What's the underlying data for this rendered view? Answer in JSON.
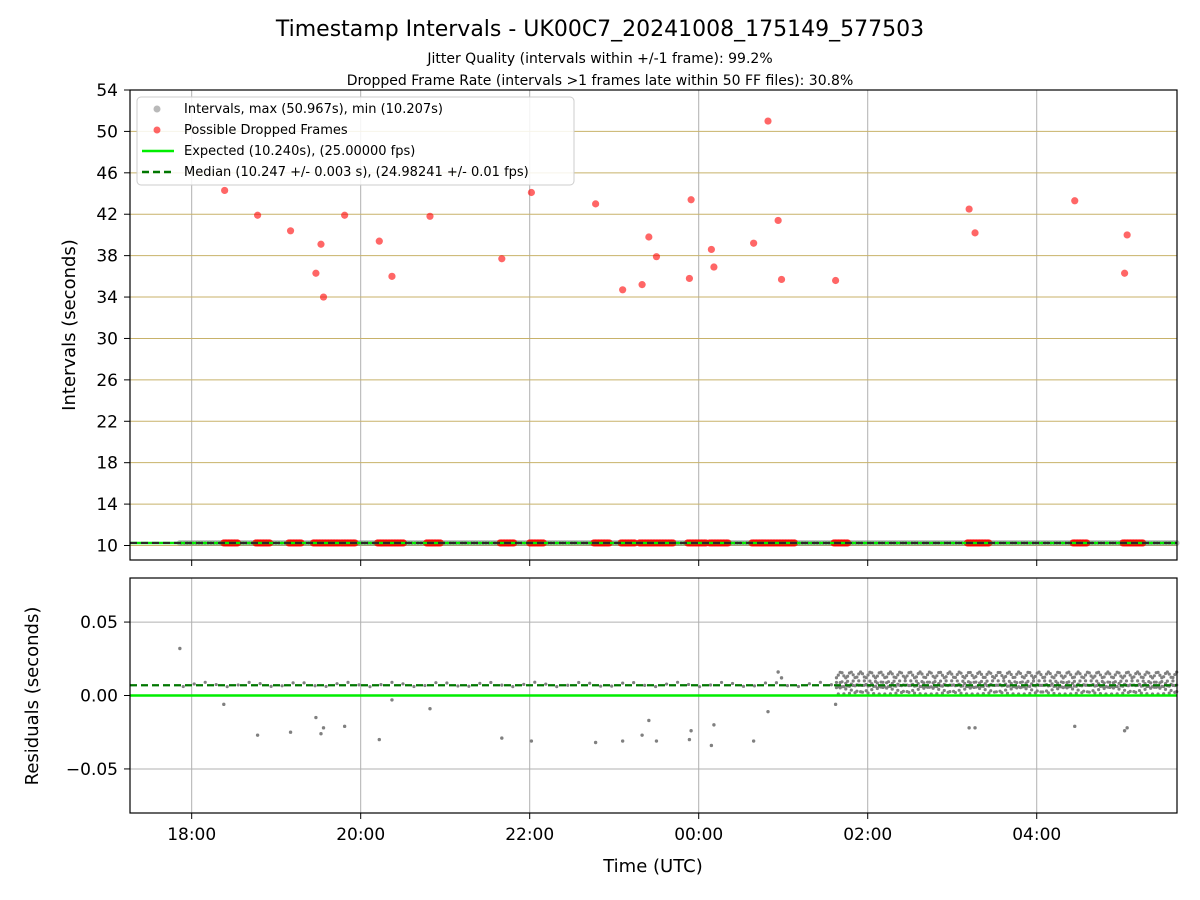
{
  "figure": {
    "title": "Timestamp Intervals - UK00C7_20241008_175149_577503",
    "subtitle_line1": "Jitter Quality (intervals within +/-1 frame): 99.2%",
    "subtitle_line2": "Dropped Frame Rate (intervals >1 frames late within 50 FF files): 30.8%"
  },
  "colors": {
    "intervals": "#808080",
    "dropped": "#ff0000",
    "expected": "#00ee00",
    "median": "#007700",
    "hgrid_top": "#c8b26a",
    "grid": "#b0b0b0"
  },
  "chart_data": [
    {
      "type": "scatter",
      "panel": "intervals",
      "xlabel": "",
      "ylabel": "Intervals (seconds)",
      "x_ticks": [
        "18:00",
        "20:00",
        "22:00",
        "00:00",
        "02:00",
        "04:00"
      ],
      "x_tick_hours": [
        18,
        20,
        22,
        24,
        26,
        28
      ],
      "xlim_hours": [
        17.27,
        29.66
      ],
      "ylim": [
        8.6,
        54
      ],
      "y_ticks": [
        10,
        14,
        18,
        22,
        26,
        30,
        34,
        38,
        42,
        46,
        50,
        54
      ],
      "grid": "vertical + horizontal",
      "legend_position": "top-left",
      "legend": {
        "intervals": "Intervals, max (50.967s), min (10.207s)",
        "dropped": "Possible Dropped Frames",
        "expected": "Expected (10.240s), (25.00000 fps)",
        "median": "Median (10.247 +/- 0.003 s), (24.98241 +/- 0.01 fps)"
      },
      "expected_value": 10.24,
      "median_value": 10.247,
      "intervals_x_range_hours": [
        17.86,
        29.66
      ],
      "intervals_y": 10.247,
      "dropped_points": [
        [
          18.39,
          44.3
        ],
        [
          18.78,
          41.9
        ],
        [
          19.17,
          40.4
        ],
        [
          19.47,
          36.3
        ],
        [
          19.53,
          39.1
        ],
        [
          19.56,
          34.0
        ],
        [
          19.81,
          41.9
        ],
        [
          20.22,
          39.4
        ],
        [
          20.37,
          36.0
        ],
        [
          20.82,
          41.8
        ],
        [
          21.67,
          37.7
        ],
        [
          22.02,
          44.1
        ],
        [
          22.78,
          43.0
        ],
        [
          23.1,
          34.7
        ],
        [
          23.33,
          35.2
        ],
        [
          23.41,
          39.8
        ],
        [
          23.5,
          37.9
        ],
        [
          23.89,
          35.8
        ],
        [
          23.91,
          43.4
        ],
        [
          24.15,
          38.6
        ],
        [
          24.18,
          36.9
        ],
        [
          24.65,
          39.2
        ],
        [
          24.82,
          51.0
        ],
        [
          24.94,
          41.4
        ],
        [
          24.98,
          35.7
        ],
        [
          25.62,
          35.6
        ],
        [
          27.2,
          42.5
        ],
        [
          27.27,
          40.2
        ],
        [
          28.45,
          43.3
        ],
        [
          29.04,
          36.3
        ],
        [
          29.07,
          40.0
        ]
      ],
      "dropped_baseline_clusters": [
        [
          18.38,
          18.55
        ],
        [
          18.76,
          18.93
        ],
        [
          19.15,
          19.3
        ],
        [
          19.44,
          19.75
        ],
        [
          19.77,
          19.95
        ],
        [
          20.2,
          20.52
        ],
        [
          20.78,
          20.95
        ],
        [
          21.65,
          21.83
        ],
        [
          22.0,
          22.18
        ],
        [
          22.76,
          22.95
        ],
        [
          23.08,
          23.26
        ],
        [
          23.3,
          23.7
        ],
        [
          23.87,
          24.1
        ],
        [
          24.13,
          24.36
        ],
        [
          24.63,
          25.15
        ],
        [
          25.6,
          25.78
        ],
        [
          27.18,
          27.45
        ],
        [
          28.43,
          28.6
        ],
        [
          29.02,
          29.27
        ]
      ]
    },
    {
      "type": "scatter",
      "panel": "residuals",
      "xlabel": "Time (UTC)",
      "ylabel": "Residuals (seconds)",
      "x_ticks": [
        "18:00",
        "20:00",
        "22:00",
        "00:00",
        "02:00",
        "04:00"
      ],
      "x_tick_hours": [
        18,
        20,
        22,
        24,
        26,
        28
      ],
      "xlim_hours": [
        17.27,
        29.66
      ],
      "ylim": [
        -0.08,
        0.08
      ],
      "y_ticks": [
        0.05,
        0.0,
        -0.05
      ],
      "y_tick_labels": [
        "0.05",
        "0.00",
        "−0.05"
      ],
      "grid": "vertical + horizontal",
      "expected_residual": 0.0,
      "median_residual": 0.007,
      "outlier_points": [
        [
          17.86,
          0.032
        ],
        [
          18.38,
          -0.006
        ],
        [
          18.78,
          -0.027
        ],
        [
          19.17,
          -0.025
        ],
        [
          19.47,
          -0.015
        ],
        [
          19.53,
          -0.026
        ],
        [
          19.56,
          -0.022
        ],
        [
          19.81,
          -0.021
        ],
        [
          20.22,
          -0.03
        ],
        [
          20.37,
          -0.003
        ],
        [
          20.82,
          -0.009
        ],
        [
          21.67,
          -0.029
        ],
        [
          22.02,
          -0.031
        ],
        [
          22.78,
          -0.032
        ],
        [
          23.1,
          -0.031
        ],
        [
          23.33,
          -0.027
        ],
        [
          23.41,
          -0.017
        ],
        [
          23.5,
          -0.031
        ],
        [
          23.89,
          -0.03
        ],
        [
          23.91,
          -0.024
        ],
        [
          24.15,
          -0.034
        ],
        [
          24.18,
          -0.02
        ],
        [
          24.65,
          -0.031
        ],
        [
          24.82,
          -0.011
        ],
        [
          24.94,
          0.016
        ],
        [
          24.98,
          0.012
        ],
        [
          25.62,
          -0.006
        ],
        [
          27.2,
          -0.022
        ],
        [
          27.27,
          -0.022
        ],
        [
          28.45,
          -0.021
        ],
        [
          29.04,
          -0.024
        ],
        [
          29.07,
          -0.022
        ]
      ],
      "dense_band_hours": [
        25.63,
        29.66
      ],
      "dense_band_range": [
        0.0,
        0.016
      ]
    }
  ]
}
